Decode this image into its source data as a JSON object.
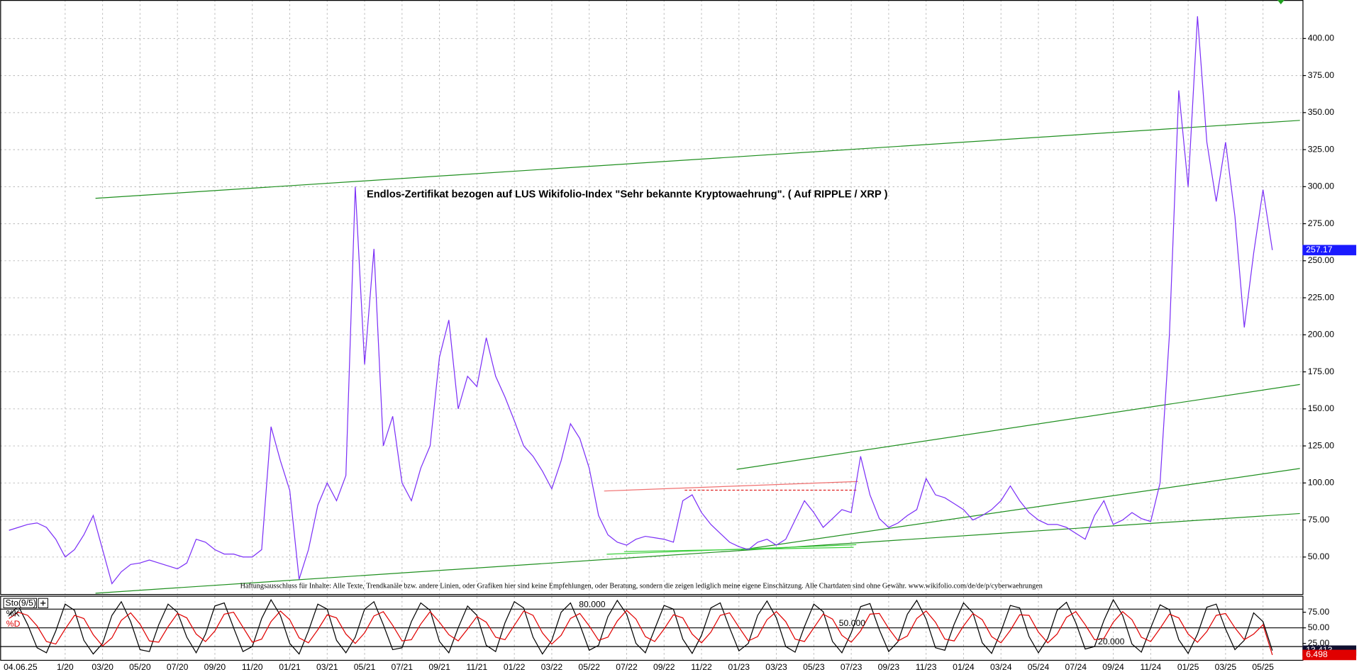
{
  "chart_data": [
    {
      "type": "line",
      "title": "Endlos-Zertifikat bezogen auf LUS Wikifolio-Index \"Sehr bekannte Kryptowaehrung\". ( Auf RIPPLE / XRP )",
      "annotations": [
        "Haftungsausschluss für Inhalte: Alle Texte, Trendkanäle bzw. andere Linien, oder Grafiken hier sind keine Empfehlungen, oder Beratung, sondern die zeigen lediglich meine eigene Einschätzung. Alle Chartdaten sind ohne Gewähr.  www.wikifolio.com/de/de/p/cyberwaehrungen"
      ],
      "date_label": "04.06.25",
      "categories": [
        null,
        null,
        null,
        null,
        null,
        null,
        "1/20",
        null,
        null,
        null,
        "03/20",
        null,
        null,
        null,
        "05/20",
        null,
        null,
        null,
        "07/20",
        null,
        null,
        null,
        "09/20",
        null,
        null,
        null,
        "11/20",
        null,
        null,
        null,
        "01/21",
        null,
        null,
        null,
        "03/21",
        null,
        null,
        null,
        "05/21",
        null,
        null,
        null,
        "07/21",
        null,
        null,
        null,
        "09/21",
        null,
        null,
        null,
        "11/21",
        null,
        null,
        null,
        "01/22",
        null,
        null,
        null,
        "03/22",
        null,
        null,
        null,
        "05/22",
        null,
        null,
        null,
        "07/22",
        null,
        null,
        null,
        "09/22",
        null,
        null,
        null,
        "11/22",
        null,
        null,
        null,
        "01/23",
        null,
        null,
        null,
        "03/23",
        null,
        null,
        null,
        "05/23",
        null,
        null,
        null,
        "07/23",
        null,
        null,
        null,
        "09/23",
        null,
        null,
        null,
        "11/23",
        null,
        null,
        null,
        "01/24",
        null,
        null,
        null,
        "03/24",
        null,
        null,
        null,
        "05/24",
        null,
        null,
        null,
        "07/24",
        null,
        null,
        null,
        "09/24",
        null,
        null,
        null,
        "11/24",
        null,
        null,
        null,
        "01/25",
        null,
        null,
        null,
        "03/25",
        null,
        null,
        null,
        "05/25",
        null
      ],
      "series": [
        {
          "color": "#7b2ff7",
          "values": [
            68,
            70,
            72,
            73,
            70,
            62,
            50,
            55,
            65,
            78,
            55,
            32,
            40,
            45,
            46,
            48,
            46,
            44,
            42,
            46,
            62,
            60,
            55,
            52,
            52,
            50,
            50,
            55,
            138,
            115,
            95,
            35,
            55,
            85,
            100,
            88,
            105,
            300,
            180,
            258,
            125,
            145,
            100,
            88,
            110,
            125,
            185,
            210,
            150,
            172,
            165,
            198,
            172,
            158,
            142,
            125,
            118,
            108,
            96,
            115,
            140,
            130,
            110,
            78,
            65,
            60,
            58,
            62,
            64,
            63,
            62,
            60,
            88,
            92,
            80,
            72,
            66,
            60,
            57,
            55,
            60,
            62,
            58,
            62,
            75,
            88,
            80,
            70,
            76,
            82,
            80,
            118,
            92,
            76,
            70,
            73,
            78,
            82,
            103,
            92,
            90,
            86,
            82,
            75,
            78,
            82,
            88,
            98,
            88,
            80,
            75,
            72,
            72,
            70,
            66,
            62,
            78,
            88,
            72,
            75,
            80,
            76,
            74,
            100,
            200,
            365,
            300,
            415,
            330,
            290,
            330,
            280,
            205,
            255,
            298,
            257.17
          ]
        }
      ],
      "ylim": [
        25,
        426
      ],
      "yticks": [
        {
          "value": 50,
          "label": "50.00"
        },
        {
          "value": 75,
          "label": "75.00"
        },
        {
          "value": 100,
          "label": "100.00"
        },
        {
          "value": 125,
          "label": "125.00"
        },
        {
          "value": 150,
          "label": "150.00"
        },
        {
          "value": 175,
          "label": "175.00"
        },
        {
          "value": 200,
          "label": "200.00"
        },
        {
          "value": 225,
          "label": "225.00"
        },
        {
          "value": 250,
          "label": "250.00"
        },
        {
          "value": 275,
          "label": "275.00"
        },
        {
          "value": 300,
          "label": "300.00"
        },
        {
          "value": 325,
          "label": "325.00"
        },
        {
          "value": 350,
          "label": "350.00"
        },
        {
          "value": 375,
          "label": "375.00"
        },
        {
          "value": 400,
          "label": "400.00"
        }
      ],
      "grid": true
    },
    {
      "type": "line",
      "title": "Sto(9/5)",
      "series": [
        {
          "name": "%K",
          "color": "#000000",
          "values": [
            70,
            85,
            55,
            18,
            10,
            45,
            88,
            78,
            30,
            8,
            25,
            70,
            92,
            60,
            15,
            12,
            55,
            88,
            75,
            35,
            10,
            40,
            85,
            90,
            50,
            12,
            20,
            65,
            95,
            70,
            25,
            8,
            45,
            88,
            80,
            30,
            10,
            35,
            80,
            92,
            55,
            15,
            18,
            60,
            90,
            78,
            28,
            10,
            50,
            85,
            70,
            22,
            12,
            58,
            92,
            82,
            35,
            8,
            30,
            75,
            90,
            55,
            14,
            22,
            68,
            94,
            72,
            25,
            10,
            48,
            86,
            80,
            32,
            9,
            38,
            82,
            90,
            50,
            13,
            25,
            70,
            93,
            66,
            20,
            11,
            52,
            88,
            76,
            28,
            10,
            42,
            84,
            89,
            47,
            12,
            28,
            72,
            94,
            64,
            18,
            14,
            56,
            90,
            74,
            26,
            9,
            44,
            86,
            82,
            36,
            10,
            33,
            78,
            91,
            58,
            16,
            20,
            62,
            95,
            70,
            24,
            11,
            50,
            87,
            79,
            31,
            9,
            40,
            83,
            88,
            48,
            15,
            30,
            74,
            60,
            13.413
          ]
        },
        {
          "name": "%D",
          "color": "#e00000",
          "values": [
            65,
            75,
            70,
            53,
            28,
            24,
            48,
            70,
            65,
            39,
            21,
            34,
            62,
            74,
            56,
            29,
            27,
            52,
            73,
            66,
            40,
            28,
            45,
            72,
            75,
            51,
            27,
            32,
            60,
            77,
            63,
            34,
            26,
            47,
            71,
            66,
            40,
            25,
            42,
            69,
            76,
            54,
            29,
            31,
            56,
            76,
            59,
            39,
            29,
            48,
            68,
            59,
            35,
            31,
            54,
            77,
            70,
            42,
            24,
            38,
            65,
            73,
            53,
            30,
            35,
            61,
            78,
            64,
            36,
            28,
            48,
            71,
            66,
            40,
            26,
            43,
            70,
            74,
            51,
            29,
            36,
            63,
            76,
            60,
            32,
            28,
            50,
            72,
            64,
            38,
            27,
            45,
            72,
            73,
            49,
            29,
            37,
            65,
            77,
            59,
            32,
            29,
            53,
            73,
            63,
            36,
            26,
            46,
            71,
            70,
            43,
            26,
            40,
            67,
            76,
            55,
            31,
            33,
            59,
            76,
            63,
            35,
            28,
            49,
            72,
            66,
            40,
            27,
            44,
            70,
            73,
            50,
            31,
            40,
            55,
            6.498
          ]
        }
      ],
      "ylim": [
        0,
        100
      ],
      "yticks": [
        {
          "value": 25,
          "label": "25.00"
        },
        {
          "value": 50,
          "label": "50.00"
        },
        {
          "value": 75,
          "label": "75.00"
        }
      ],
      "levels": [
        {
          "value": 80,
          "label": "80.000"
        },
        {
          "value": 50,
          "label": "50.000"
        },
        {
          "value": 20,
          "label": "20.000"
        }
      ]
    }
  ]
}
